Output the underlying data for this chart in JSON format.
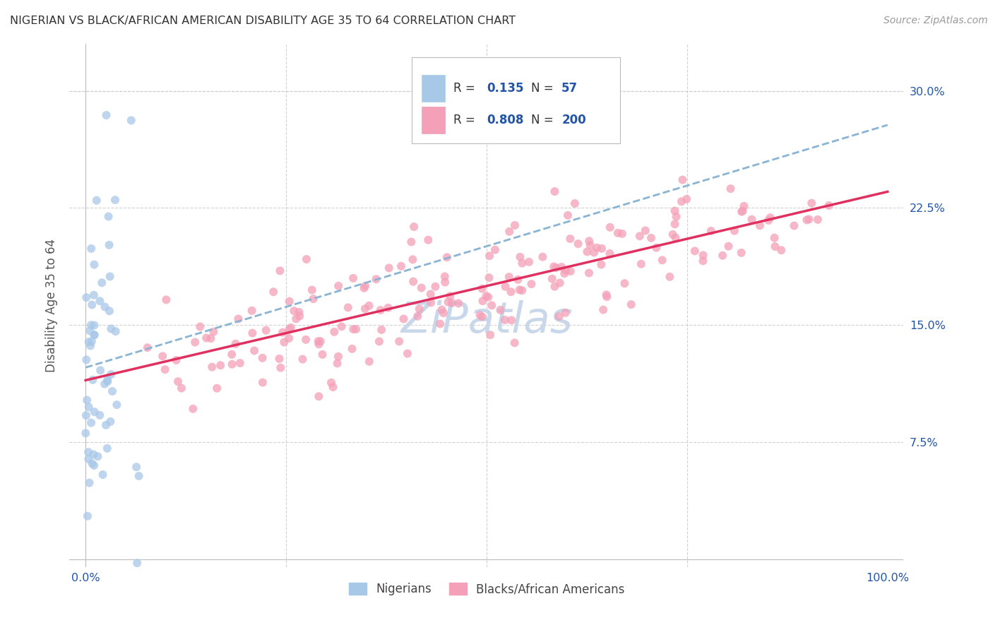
{
  "title": "NIGERIAN VS BLACK/AFRICAN AMERICAN DISABILITY AGE 35 TO 64 CORRELATION CHART",
  "source": "Source: ZipAtlas.com",
  "ylabel": "Disability Age 35 to 64",
  "legend_label1": "Nigerians",
  "legend_label2": "Blacks/African Americans",
  "r1": 0.135,
  "n1": 57,
  "r2": 0.808,
  "n2": 200,
  "xlim": [
    -0.02,
    1.02
  ],
  "ylim": [
    -0.005,
    0.33
  ],
  "xtick_vals": [
    0.0,
    0.25,
    0.5,
    0.75,
    1.0
  ],
  "xtick_labels": [
    "0.0%",
    "",
    "",
    "",
    "100.0%"
  ],
  "ytick_vals": [
    0.075,
    0.15,
    0.225,
    0.3
  ],
  "ytick_labels": [
    "7.5%",
    "15.0%",
    "22.5%",
    "30.0%"
  ],
  "color_blue": "#a8c8e8",
  "color_pink": "#f4a0b8",
  "color_line_blue": "#8ab4d4",
  "color_line_pink": "#e03060",
  "tick_color": "#2255aa",
  "label_color": "#555555",
  "background_color": "#ffffff",
  "grid_color": "#cccccc",
  "watermark_color": "#c8d8ea",
  "seed": 12345
}
